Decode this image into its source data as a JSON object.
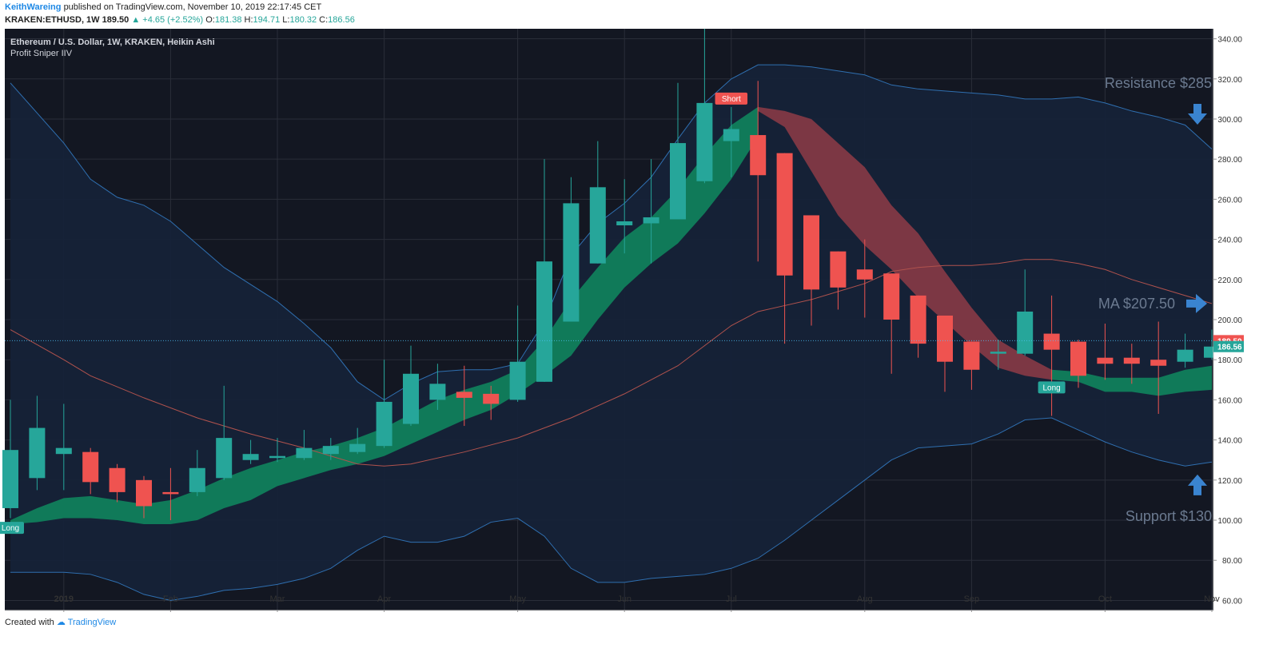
{
  "header": {
    "author": "KeithWareing",
    "published": "published on TradingView.com, November 10, 2019 22:17:45 CET",
    "symbol": "KRAKEN:ETHUSD, 1W",
    "price": "189.50",
    "change": "+4.65 (+2.52%)",
    "open_label": "O:",
    "open": "181.38",
    "high_label": "H:",
    "high": "194.71",
    "low_label": "L:",
    "low": "180.32",
    "close_label": "C:",
    "close": "186.56"
  },
  "footer": {
    "created": "Created with",
    "brand": "TradingView"
  },
  "colors": {
    "background": "#131722",
    "cloud": "#152238",
    "up": "#26a69a",
    "down": "#ef5350",
    "band_line": "#2f6fb0",
    "ma_line": "#b0524d",
    "bull_band": "#0f8a5f",
    "bear_band": "#8e3b46",
    "arrow": "#3a84d0",
    "annotation_text": "#6b7a90"
  },
  "chart_data": {
    "type": "candlestick",
    "title": "Ethereum / U.S. Dollar, 1W, KRAKEN, Heikin Ashi",
    "subtitle": "Profit Sniper IIV",
    "ylim": [
      55,
      345
    ],
    "yticks": [
      60,
      80,
      100,
      120,
      140,
      160,
      180,
      200,
      220,
      240,
      260,
      280,
      300,
      320,
      340
    ],
    "ytick_labels": [
      "60.00",
      "80.00",
      "100.00",
      "120.00",
      "140.00",
      "160.00",
      "180.00",
      "200.00",
      "220.00",
      "240.00",
      "260.00",
      "280.00",
      "300.00",
      "320.00",
      "340.00"
    ],
    "xlabels": [
      {
        "label": "2019",
        "index": 2
      },
      {
        "label": "Feb",
        "index": 6
      },
      {
        "label": "Mar",
        "index": 10
      },
      {
        "label": "Apr",
        "index": 14
      },
      {
        "label": "May",
        "index": 19
      },
      {
        "label": "Jun",
        "index": 23
      },
      {
        "label": "Jul",
        "index": 27
      },
      {
        "label": "Aug",
        "index": 32
      },
      {
        "label": "Sep",
        "index": 36
      },
      {
        "label": "Oct",
        "index": 41
      },
      {
        "label": "Nov",
        "index": 45
      }
    ],
    "candles": [
      {
        "o": 106,
        "h": 160,
        "l": 101,
        "c": 135
      },
      {
        "o": 121,
        "h": 162,
        "l": 115,
        "c": 146
      },
      {
        "o": 133,
        "h": 158,
        "l": 115,
        "c": 136
      },
      {
        "o": 134,
        "h": 136,
        "l": 113,
        "c": 119
      },
      {
        "o": 126,
        "h": 128,
        "l": 109,
        "c": 114
      },
      {
        "o": 120,
        "h": 122,
        "l": 101,
        "c": 107
      },
      {
        "o": 114,
        "h": 126,
        "l": 100,
        "c": 113
      },
      {
        "o": 114,
        "h": 135,
        "l": 112,
        "c": 126
      },
      {
        "o": 121,
        "h": 167,
        "l": 120,
        "c": 141
      },
      {
        "o": 130,
        "h": 140,
        "l": 128,
        "c": 133
      },
      {
        "o": 131,
        "h": 141,
        "l": 129,
        "c": 132
      },
      {
        "o": 131,
        "h": 145,
        "l": 130,
        "c": 136
      },
      {
        "o": 133,
        "h": 141,
        "l": 130,
        "c": 137
      },
      {
        "o": 134,
        "h": 146,
        "l": 133,
        "c": 138
      },
      {
        "o": 137,
        "h": 180,
        "l": 136,
        "c": 159
      },
      {
        "o": 148,
        "h": 187,
        "l": 147,
        "c": 173
      },
      {
        "o": 160,
        "h": 178,
        "l": 155,
        "c": 168
      },
      {
        "o": 164,
        "h": 177,
        "l": 147,
        "c": 161
      },
      {
        "o": 163,
        "h": 167,
        "l": 150,
        "c": 158
      },
      {
        "o": 160,
        "h": 207,
        "l": 159,
        "c": 179
      },
      {
        "o": 169,
        "h": 280,
        "l": 169,
        "c": 229
      },
      {
        "o": 199,
        "h": 271,
        "l": 199,
        "c": 258
      },
      {
        "o": 228,
        "h": 289,
        "l": 228,
        "c": 266
      },
      {
        "o": 247,
        "h": 270,
        "l": 233,
        "c": 249
      },
      {
        "o": 248,
        "h": 280,
        "l": 228,
        "c": 251
      },
      {
        "o": 250,
        "h": 318,
        "l": 250,
        "c": 288
      },
      {
        "o": 269,
        "h": 345,
        "l": 268,
        "c": 308
      },
      {
        "o": 289,
        "h": 306,
        "l": 271,
        "c": 295
      },
      {
        "o": 292,
        "h": 319,
        "l": 229,
        "c": 272
      },
      {
        "o": 283,
        "h": 283,
        "l": 188,
        "c": 222
      },
      {
        "o": 252,
        "h": 252,
        "l": 197,
        "c": 215
      },
      {
        "o": 234,
        "h": 234,
        "l": 205,
        "c": 216
      },
      {
        "o": 225,
        "h": 240,
        "l": 201,
        "c": 220
      },
      {
        "o": 223,
        "h": 223,
        "l": 173,
        "c": 200
      },
      {
        "o": 212,
        "h": 212,
        "l": 181,
        "c": 188
      },
      {
        "o": 202,
        "h": 202,
        "l": 164,
        "c": 179
      },
      {
        "o": 189,
        "h": 189,
        "l": 165,
        "c": 175
      },
      {
        "o": 183,
        "h": 190,
        "l": 175,
        "c": 184
      },
      {
        "o": 183,
        "h": 225,
        "l": 182,
        "c": 204
      },
      {
        "o": 193,
        "h": 212,
        "l": 152,
        "c": 185
      },
      {
        "o": 189,
        "h": 190,
        "l": 166,
        "c": 172
      },
      {
        "o": 181,
        "h": 198,
        "l": 170,
        "c": 178
      },
      {
        "o": 181,
        "h": 188,
        "l": 168,
        "c": 178
      },
      {
        "o": 180,
        "h": 199,
        "l": 153,
        "c": 177
      },
      {
        "o": 179,
        "h": 193,
        "l": 176,
        "c": 185
      },
      {
        "o": 181,
        "h": 195,
        "l": 180,
        "c": 186.56
      }
    ],
    "band_upper": [
      [
        0,
        318
      ],
      [
        2,
        288
      ],
      [
        3,
        270
      ],
      [
        4,
        261
      ],
      [
        5,
        257
      ],
      [
        6,
        249
      ],
      [
        8,
        226
      ],
      [
        10,
        209
      ],
      [
        11,
        198
      ],
      [
        12,
        186
      ],
      [
        13,
        169
      ],
      [
        14,
        160
      ],
      [
        15,
        168
      ],
      [
        16,
        174
      ],
      [
        17,
        175
      ],
      [
        18,
        175
      ],
      [
        19,
        178
      ],
      [
        20,
        199
      ],
      [
        21,
        232
      ],
      [
        22,
        248
      ],
      [
        23,
        258
      ],
      [
        24,
        271
      ],
      [
        25,
        290
      ],
      [
        26,
        308
      ],
      [
        27,
        320
      ],
      [
        28,
        327
      ],
      [
        29,
        327
      ],
      [
        30,
        326
      ],
      [
        31,
        324
      ],
      [
        32,
        322
      ],
      [
        33,
        317
      ],
      [
        34,
        315
      ],
      [
        35,
        314
      ],
      [
        36,
        313
      ],
      [
        37,
        312
      ],
      [
        38,
        310
      ],
      [
        39,
        310
      ],
      [
        40,
        311
      ],
      [
        41,
        308
      ],
      [
        42,
        304
      ],
      [
        43,
        301
      ],
      [
        44,
        297
      ],
      [
        45,
        285
      ]
    ],
    "band_lower": [
      [
        0,
        74
      ],
      [
        2,
        74
      ],
      [
        3,
        73
      ],
      [
        4,
        69
      ],
      [
        5,
        63
      ],
      [
        6,
        60
      ],
      [
        7,
        62
      ],
      [
        8,
        65
      ],
      [
        9,
        66
      ],
      [
        10,
        68
      ],
      [
        11,
        71
      ],
      [
        12,
        76
      ],
      [
        13,
        85
      ],
      [
        14,
        92
      ],
      [
        15,
        89
      ],
      [
        16,
        89
      ],
      [
        17,
        92
      ],
      [
        18,
        99
      ],
      [
        19,
        101
      ],
      [
        20,
        92
      ],
      [
        21,
        76
      ],
      [
        22,
        69
      ],
      [
        23,
        69
      ],
      [
        24,
        71
      ],
      [
        25,
        72
      ],
      [
        26,
        73
      ],
      [
        27,
        76
      ],
      [
        28,
        81
      ],
      [
        29,
        90
      ],
      [
        30,
        100
      ],
      [
        31,
        110
      ],
      [
        32,
        120
      ],
      [
        33,
        130
      ],
      [
        34,
        136
      ],
      [
        35,
        137
      ],
      [
        36,
        138
      ],
      [
        37,
        143
      ],
      [
        38,
        150
      ],
      [
        39,
        151
      ],
      [
        40,
        145
      ],
      [
        41,
        139
      ],
      [
        42,
        134
      ],
      [
        43,
        130
      ],
      [
        44,
        127
      ],
      [
        45,
        129
      ]
    ],
    "ma": [
      [
        0,
        195
      ],
      [
        2,
        180
      ],
      [
        3,
        172
      ],
      [
        5,
        161
      ],
      [
        7,
        151
      ],
      [
        9,
        143
      ],
      [
        11,
        136
      ],
      [
        13,
        128
      ],
      [
        14,
        127
      ],
      [
        15,
        128
      ],
      [
        17,
        134
      ],
      [
        19,
        141
      ],
      [
        21,
        151
      ],
      [
        23,
        163
      ],
      [
        25,
        177
      ],
      [
        26,
        187
      ],
      [
        27,
        197
      ],
      [
        28,
        204
      ],
      [
        29,
        207
      ],
      [
        30,
        210
      ],
      [
        31,
        214
      ],
      [
        32,
        218
      ],
      [
        33,
        224
      ],
      [
        34,
        226
      ],
      [
        35,
        227
      ],
      [
        36,
        227
      ],
      [
        37,
        228
      ],
      [
        38,
        230
      ],
      [
        39,
        230
      ],
      [
        40,
        228
      ],
      [
        41,
        225
      ],
      [
        42,
        220
      ],
      [
        43,
        216
      ],
      [
        44,
        212
      ],
      [
        45,
        208
      ]
    ],
    "bull_band": [
      [
        0,
        100,
        98
      ],
      [
        1,
        106,
        99
      ],
      [
        2,
        111,
        101
      ],
      [
        3,
        112,
        101
      ],
      [
        4,
        110,
        100
      ],
      [
        5,
        108,
        98
      ],
      [
        6,
        110,
        98
      ],
      [
        7,
        115,
        100
      ],
      [
        8,
        121,
        106
      ],
      [
        9,
        126,
        110
      ],
      [
        10,
        130,
        117
      ],
      [
        11,
        134,
        121
      ],
      [
        12,
        137,
        125
      ],
      [
        13,
        141,
        128
      ],
      [
        14,
        146,
        132
      ],
      [
        15,
        153,
        138
      ],
      [
        16,
        160,
        144
      ],
      [
        17,
        165,
        150
      ],
      [
        18,
        169,
        155
      ],
      [
        19,
        175,
        163
      ],
      [
        20,
        190,
        172
      ],
      [
        21,
        210,
        182
      ],
      [
        22,
        226,
        200
      ],
      [
        23,
        241,
        216
      ],
      [
        24,
        251,
        228
      ],
      [
        25,
        265,
        238
      ],
      [
        26,
        282,
        253
      ],
      [
        27,
        297,
        270
      ],
      [
        28,
        306,
        291
      ]
    ],
    "bear_band": [
      [
        28,
        306,
        304
      ],
      [
        29,
        304,
        296
      ],
      [
        30,
        300,
        274
      ],
      [
        31,
        288,
        252
      ],
      [
        32,
        276,
        237
      ],
      [
        33,
        257,
        225
      ],
      [
        34,
        243,
        211
      ],
      [
        35,
        224,
        199
      ],
      [
        36,
        206,
        187
      ],
      [
        37,
        190,
        176
      ],
      [
        38,
        182,
        172
      ],
      [
        39,
        175,
        170
      ]
    ],
    "bull_band2": [
      [
        39,
        175,
        170
      ],
      [
        40,
        174,
        169
      ],
      [
        41,
        171,
        164
      ],
      [
        42,
        171,
        164
      ],
      [
        43,
        171,
        162
      ],
      [
        44,
        175,
        164
      ],
      [
        45,
        177,
        165
      ]
    ],
    "signals": [
      {
        "label": "Short",
        "index": 27,
        "value": 310,
        "color": "#ef5350"
      },
      {
        "label": "Long",
        "index": 39,
        "value": 166,
        "color": "#26a69a"
      },
      {
        "label": "Long",
        "index": 0,
        "value": 96,
        "color": "#26a69a"
      }
    ],
    "annotations": [
      {
        "text": "Resistance $285",
        "value": 318,
        "arrow": "down",
        "arrow_value": 302
      },
      {
        "text": "MA $207.50",
        "value": 208,
        "arrow": "right",
        "arrow_value": 208
      },
      {
        "text": "Support $130",
        "value": 102,
        "arrow": "up",
        "arrow_value": 118
      }
    ],
    "current_price": {
      "value": 189.5,
      "label": "189.50",
      "color": "#ef5350"
    },
    "close_marker": {
      "value": 186.56,
      "label": "186.56",
      "color": "#26a69a"
    }
  }
}
